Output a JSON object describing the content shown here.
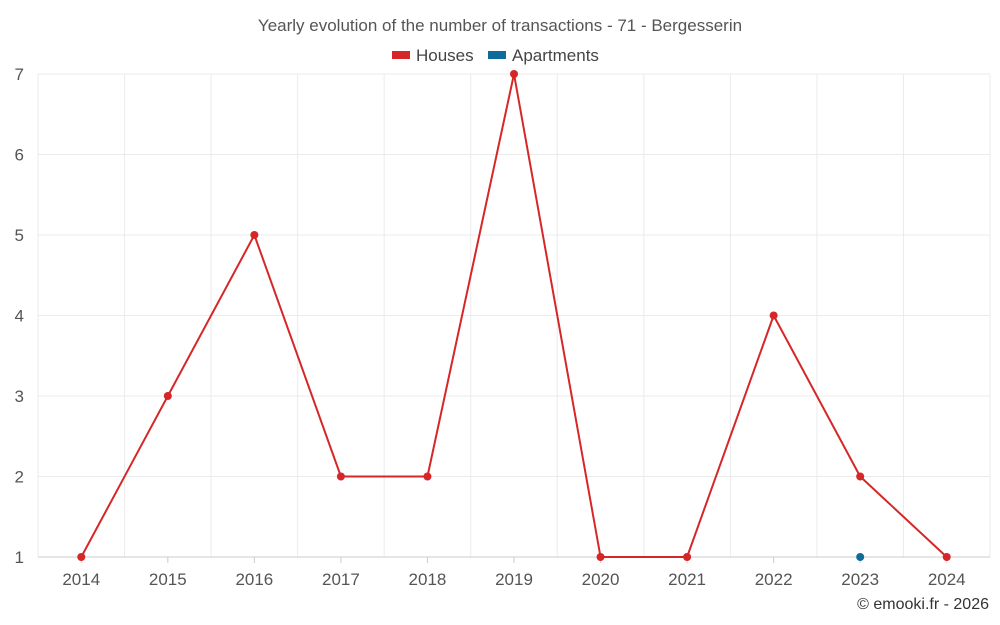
{
  "chart_data": {
    "type": "line",
    "title": "Yearly evolution of the number of transactions - 71 - Bergesserin",
    "x": [
      "2014",
      "2015",
      "2016",
      "2017",
      "2018",
      "2019",
      "2020",
      "2021",
      "2022",
      "2023",
      "2024"
    ],
    "ylim": [
      1,
      7
    ],
    "yticks": [
      "1",
      "2",
      "3",
      "4",
      "5",
      "6",
      "7"
    ],
    "grid": true,
    "legend_position": "top-center",
    "series": [
      {
        "name": "Houses",
        "color": "#d62728",
        "values": [
          1,
          3,
          5,
          2,
          2,
          7,
          1,
          1,
          4,
          2,
          1
        ]
      },
      {
        "name": "Apartments",
        "color": "#0e6b9c",
        "values": [
          null,
          null,
          null,
          null,
          null,
          null,
          null,
          null,
          null,
          1,
          null
        ]
      }
    ]
  },
  "credit": "© emooki.fr - 2026"
}
